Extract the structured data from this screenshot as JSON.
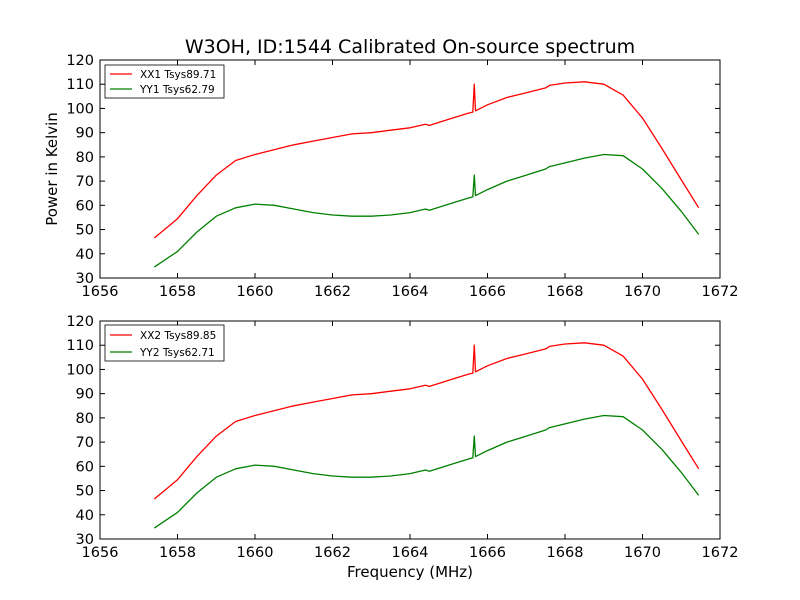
{
  "chart_data": [
    {
      "type": "line",
      "title": "W3OH, ID:1544 Calibrated On-source spectrum",
      "xlabel": "",
      "ylabel": "Power in Kelvin",
      "xlim": [
        1656,
        1672
      ],
      "ylim": [
        30,
        120
      ],
      "xticks": [
        "1656",
        "1658",
        "1660",
        "1662",
        "1664",
        "1666",
        "1668",
        "1670",
        "1672"
      ],
      "yticks": [
        "30",
        "40",
        "50",
        "60",
        "70",
        "80",
        "90",
        "100",
        "110",
        "120"
      ],
      "legend_position": "top-left",
      "series": [
        {
          "name": "XX1 Tsys89.71",
          "color": "#ff0000",
          "x": [
            1657.4,
            1658.0,
            1658.5,
            1659.0,
            1659.5,
            1660.0,
            1660.5,
            1661.0,
            1661.5,
            1662.0,
            1662.5,
            1663.0,
            1663.5,
            1664.0,
            1664.4,
            1664.5,
            1665.0,
            1665.5,
            1665.62,
            1665.66,
            1665.69,
            1665.75,
            1666.0,
            1666.5,
            1667.0,
            1667.5,
            1667.6,
            1668.0,
            1668.5,
            1669.0,
            1669.5,
            1670.0,
            1670.5,
            1671.0,
            1671.45
          ],
          "values": [
            46.5,
            54.5,
            64.0,
            72.5,
            78.5,
            81.0,
            83.0,
            85.0,
            86.5,
            88.0,
            89.5,
            90.0,
            91.0,
            92.0,
            93.5,
            93.0,
            95.5,
            98.0,
            98.5,
            110.0,
            99.0,
            99.5,
            101.5,
            104.5,
            106.5,
            108.5,
            109.5,
            110.5,
            111.0,
            110.0,
            105.5,
            96.0,
            83.5,
            70.5,
            59.0
          ]
        },
        {
          "name": "YY1 Tsys62.79",
          "color": "#008000",
          "x": [
            1657.4,
            1658.0,
            1658.5,
            1659.0,
            1659.5,
            1660.0,
            1660.5,
            1661.0,
            1661.5,
            1662.0,
            1662.5,
            1663.0,
            1663.5,
            1664.0,
            1664.4,
            1664.5,
            1665.0,
            1665.5,
            1665.62,
            1665.66,
            1665.69,
            1665.75,
            1666.0,
            1666.5,
            1667.0,
            1667.5,
            1667.6,
            1668.0,
            1668.5,
            1669.0,
            1669.5,
            1670.0,
            1670.5,
            1671.0,
            1671.45
          ],
          "values": [
            34.5,
            41.0,
            49.0,
            55.5,
            59.0,
            60.5,
            60.0,
            58.5,
            57.0,
            56.0,
            55.5,
            55.5,
            56.0,
            57.0,
            58.5,
            58.0,
            60.5,
            63.0,
            63.5,
            72.5,
            64.0,
            64.5,
            66.5,
            70.0,
            72.5,
            75.0,
            76.0,
            77.5,
            79.5,
            81.0,
            80.5,
            75.0,
            67.0,
            57.5,
            48.0
          ]
        }
      ]
    },
    {
      "type": "line",
      "title": "",
      "xlabel": "Frequency (MHz)",
      "ylabel": "",
      "xlim": [
        1656,
        1672
      ],
      "ylim": [
        30,
        120
      ],
      "xticks": [
        "1656",
        "1658",
        "1660",
        "1662",
        "1664",
        "1666",
        "1668",
        "1670",
        "1672"
      ],
      "yticks": [
        "30",
        "40",
        "50",
        "60",
        "70",
        "80",
        "90",
        "100",
        "110",
        "120"
      ],
      "legend_position": "top-left",
      "series": [
        {
          "name": "XX2 Tsys89.85",
          "color": "#ff0000",
          "x": [
            1657.4,
            1658.0,
            1658.5,
            1659.0,
            1659.5,
            1660.0,
            1660.5,
            1661.0,
            1661.5,
            1662.0,
            1662.5,
            1663.0,
            1663.5,
            1664.0,
            1664.4,
            1664.5,
            1665.0,
            1665.5,
            1665.62,
            1665.66,
            1665.69,
            1665.75,
            1666.0,
            1666.5,
            1667.0,
            1667.5,
            1667.6,
            1668.0,
            1668.5,
            1669.0,
            1669.5,
            1670.0,
            1670.5,
            1671.0,
            1671.45
          ],
          "values": [
            46.5,
            54.5,
            64.0,
            72.5,
            78.5,
            81.0,
            83.0,
            85.0,
            86.5,
            88.0,
            89.5,
            90.0,
            91.0,
            92.0,
            93.5,
            93.0,
            95.5,
            98.0,
            98.5,
            110.0,
            99.0,
            99.5,
            101.5,
            104.5,
            106.5,
            108.5,
            109.5,
            110.5,
            111.0,
            110.0,
            105.5,
            96.0,
            83.5,
            70.5,
            59.0
          ]
        },
        {
          "name": "YY2 Tsys62.71",
          "color": "#008000",
          "x": [
            1657.4,
            1658.0,
            1658.5,
            1659.0,
            1659.5,
            1660.0,
            1660.5,
            1661.0,
            1661.5,
            1662.0,
            1662.5,
            1663.0,
            1663.5,
            1664.0,
            1664.4,
            1664.5,
            1665.0,
            1665.5,
            1665.62,
            1665.66,
            1665.69,
            1665.75,
            1666.0,
            1666.5,
            1667.0,
            1667.5,
            1667.6,
            1668.0,
            1668.5,
            1669.0,
            1669.5,
            1670.0,
            1670.5,
            1671.0,
            1671.45
          ],
          "values": [
            34.5,
            41.0,
            49.0,
            55.5,
            59.0,
            60.5,
            60.0,
            58.5,
            57.0,
            56.0,
            55.5,
            55.5,
            56.0,
            57.0,
            58.5,
            58.0,
            60.5,
            63.0,
            63.5,
            72.5,
            64.0,
            64.5,
            66.5,
            70.0,
            72.5,
            75.0,
            76.0,
            77.5,
            79.5,
            81.0,
            80.5,
            75.0,
            67.0,
            57.5,
            48.0
          ]
        }
      ]
    }
  ]
}
